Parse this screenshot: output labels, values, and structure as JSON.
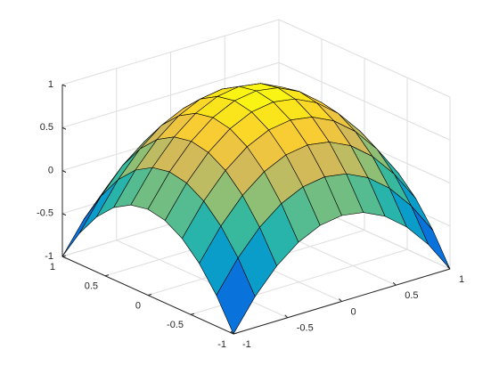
{
  "chart_data": {
    "type": "surface",
    "colormap": "parula",
    "grid": true,
    "x": [
      -1,
      -0.8,
      -0.6,
      -0.4,
      -0.2,
      0,
      0.2,
      0.4,
      0.6,
      0.8,
      1
    ],
    "y": [
      -1,
      -0.8,
      -0.6,
      -0.4,
      -0.2,
      0,
      0.2,
      0.4,
      0.6,
      0.8,
      1
    ],
    "z": [
      [
        -1,
        -0.64,
        -0.36,
        -0.16,
        -0.04,
        0,
        -0.04,
        -0.16,
        -0.36,
        -0.64,
        -1
      ],
      [
        -0.64,
        -0.28,
        0,
        0.2,
        0.32,
        0.36,
        0.32,
        0.2,
        0,
        -0.28,
        -0.64
      ],
      [
        -0.36,
        0,
        0.28,
        0.48,
        0.6,
        0.64,
        0.6,
        0.48,
        0.28,
        0,
        -0.36
      ],
      [
        -0.16,
        0.2,
        0.48,
        0.68,
        0.8,
        0.84,
        0.8,
        0.68,
        0.48,
        0.2,
        -0.16
      ],
      [
        -0.04,
        0.32,
        0.6,
        0.8,
        0.92,
        0.96,
        0.92,
        0.8,
        0.6,
        0.32,
        -0.04
      ],
      [
        0,
        0.36,
        0.64,
        0.84,
        0.96,
        1,
        0.96,
        0.84,
        0.64,
        0.36,
        0
      ],
      [
        -0.04,
        0.32,
        0.6,
        0.8,
        0.92,
        0.96,
        0.92,
        0.8,
        0.6,
        0.32,
        -0.04
      ],
      [
        -0.16,
        0.2,
        0.48,
        0.68,
        0.8,
        0.84,
        0.8,
        0.68,
        0.48,
        0.2,
        -0.16
      ],
      [
        -0.36,
        0,
        0.28,
        0.48,
        0.6,
        0.64,
        0.6,
        0.48,
        0.28,
        0,
        -0.36
      ],
      [
        -0.64,
        -0.28,
        0,
        0.2,
        0.32,
        0.36,
        0.32,
        0.2,
        0,
        -0.28,
        -0.64
      ],
      [
        -1,
        -0.64,
        -0.36,
        -0.16,
        -0.04,
        0,
        -0.04,
        -0.16,
        -0.36,
        -0.64,
        -1
      ]
    ],
    "xlim": [
      -1,
      1
    ],
    "ylim": [
      -1,
      1
    ],
    "zlim": [
      -1,
      1
    ],
    "xticks": [
      -1,
      -0.5,
      0,
      0.5,
      1
    ],
    "yticks": [
      -1,
      -0.5,
      0,
      0.5,
      1
    ],
    "zticks": [
      -1,
      -0.5,
      0,
      0.5,
      1
    ]
  }
}
